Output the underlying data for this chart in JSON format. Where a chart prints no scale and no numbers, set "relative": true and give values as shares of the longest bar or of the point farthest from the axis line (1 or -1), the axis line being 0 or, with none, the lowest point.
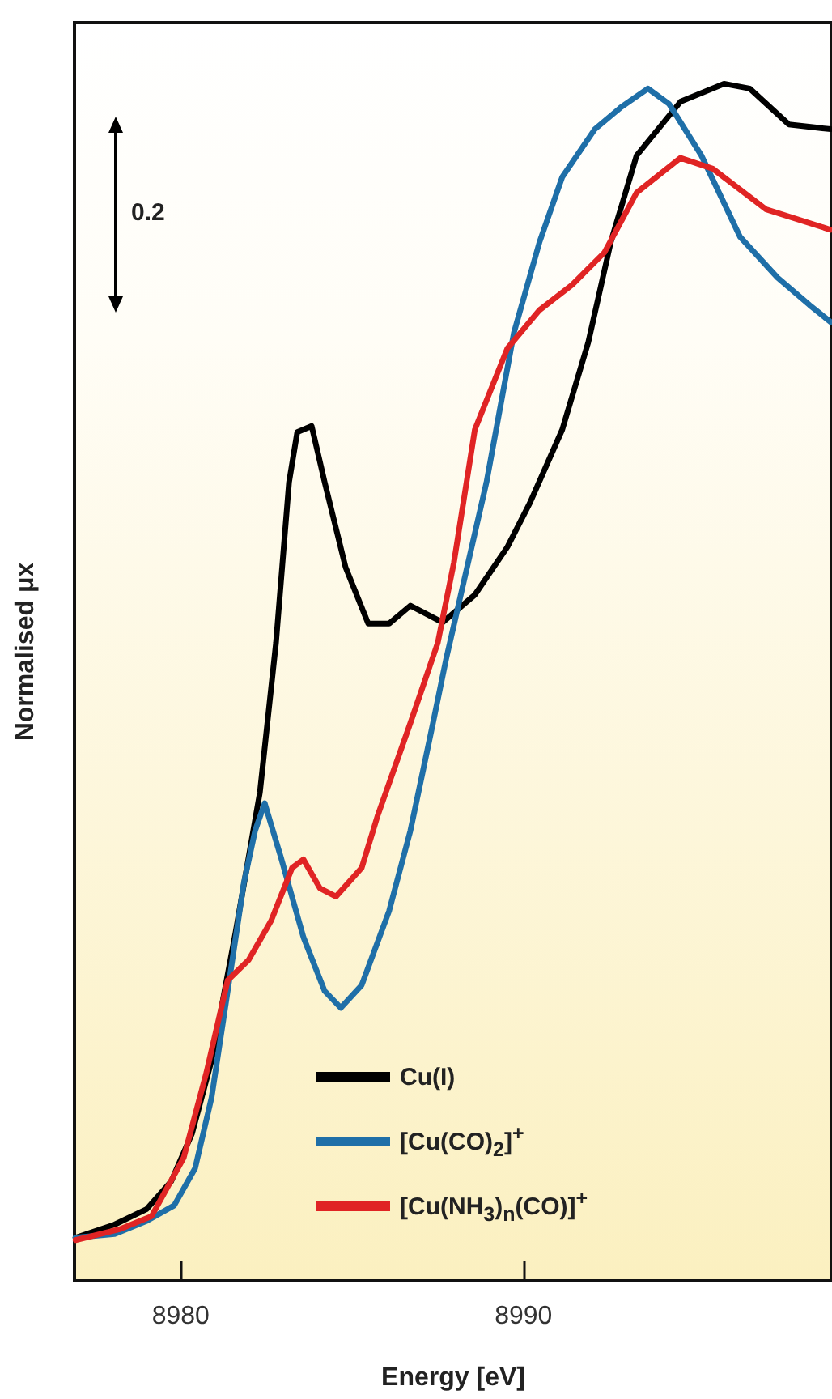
{
  "chart_data": {
    "type": "line",
    "xlabel": "Energy [eV]",
    "ylabel": "Normalised μx",
    "relative": true,
    "xlim": [
      8976.9,
      8999.0
    ],
    "xticks": [
      8980,
      8990
    ],
    "grid": false,
    "legend": "bottom",
    "marker": "none",
    "line_style": "solid",
    "annotations": [
      "0.2"
    ],
    "series": [
      {
        "name": "Cu(I)",
        "color": "#000000",
        "x": [
          8976.93,
          8978.07,
          8979.01,
          8979.72,
          8980.33,
          8980.9,
          8981.6,
          8982.31,
          8982.78,
          8983.16,
          8983.4,
          8983.82,
          8984.2,
          8984.81,
          8985.47,
          8986.08,
          8986.7,
          8987.64,
          8988.58,
          8989.53,
          8990.19,
          8991.13,
          8991.89,
          8992.55,
          8993.3,
          8994.58,
          8995.85,
          8996.6,
          8997.74,
          8998.96
        ],
        "values": [
          0.036,
          0.047,
          0.06,
          0.083,
          0.123,
          0.184,
          0.291,
          0.408,
          0.533,
          0.667,
          0.709,
          0.714,
          0.667,
          0.596,
          0.549,
          0.549,
          0.564,
          0.55,
          0.573,
          0.613,
          0.65,
          0.711,
          0.784,
          0.868,
          0.94,
          0.985,
          1.0,
          0.996,
          0.966,
          0.962
        ]
      },
      {
        "name": "[Cu(CO)$_{2}$]$^{+}$",
        "color": "#1f6fa8",
        "x": [
          8976.93,
          8978.07,
          8979.01,
          8979.81,
          8980.42,
          8980.9,
          8981.37,
          8981.84,
          8982.17,
          8982.45,
          8982.92,
          8983.58,
          8984.2,
          8984.67,
          8985.28,
          8986.08,
          8986.7,
          8987.36,
          8987.74,
          8988.92,
          8989.72,
          8990.47,
          8991.13,
          8992.08,
          8992.83,
          8993.63,
          8994.25,
          8995.19,
          8996.32,
          8997.41,
          8998.35,
          8998.96
        ],
        "values": [
          0.036,
          0.039,
          0.05,
          0.063,
          0.094,
          0.153,
          0.242,
          0.332,
          0.376,
          0.399,
          0.354,
          0.287,
          0.242,
          0.228,
          0.247,
          0.309,
          0.376,
          0.466,
          0.519,
          0.667,
          0.792,
          0.868,
          0.922,
          0.962,
          0.98,
          0.996,
          0.983,
          0.94,
          0.872,
          0.838,
          0.815,
          0.801
        ]
      },
      {
        "name": "[Cu(NH$_{3}$)$_{n}$(CO)]$^{+}$",
        "color": "#e02424",
        "x": [
          8976.93,
          8978.21,
          8979.15,
          8980.09,
          8980.75,
          8981.37,
          8981.98,
          8982.64,
          8983.25,
          8983.58,
          8984.06,
          8984.53,
          8985.28,
          8985.75,
          8986.7,
          8987.5,
          8987.97,
          8988.58,
          8989.53,
          8990.47,
          8991.42,
          8992.36,
          8993.3,
          8994.58,
          8995.52,
          8997.08,
          8998.96
        ],
        "values": [
          0.034,
          0.043,
          0.054,
          0.103,
          0.174,
          0.251,
          0.268,
          0.301,
          0.345,
          0.352,
          0.328,
          0.321,
          0.345,
          0.389,
          0.466,
          0.533,
          0.6,
          0.711,
          0.779,
          0.811,
          0.832,
          0.859,
          0.909,
          0.938,
          0.929,
          0.895,
          0.878
        ]
      }
    ]
  }
}
